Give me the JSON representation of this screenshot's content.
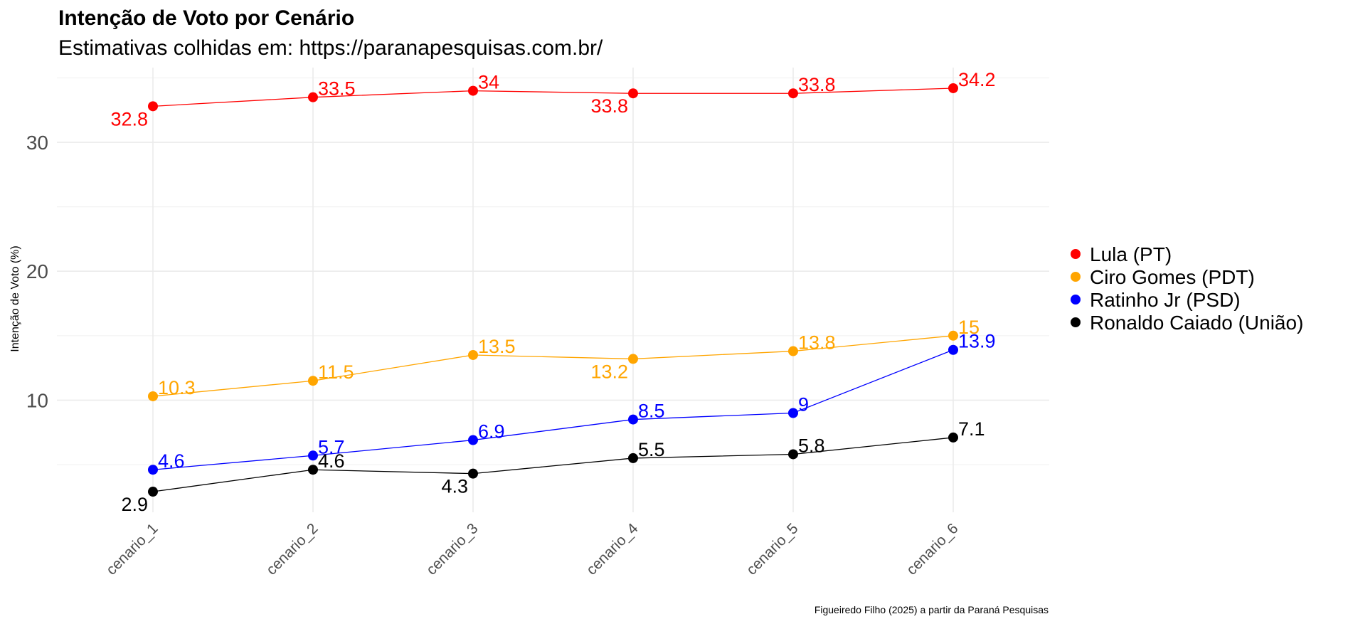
{
  "chart_data": {
    "type": "line",
    "title": "Intenção de Voto por Cenário",
    "subtitle": "Estimativas colhidas em: https://paranapesquisas.com.br/",
    "xlabel": "",
    "ylabel": "Intenção de Voto (%)",
    "caption": "Figueiredo Filho (2025) a partir da Paraná Pesquisas",
    "categories": [
      "cenario_1",
      "cenario_2",
      "cenario_3",
      "cenario_4",
      "cenario_5",
      "cenario_6"
    ],
    "ylim": [
      1.3,
      35.8
    ],
    "yticks": [
      10,
      20,
      30
    ],
    "grid": true,
    "legend_position": "right",
    "series": [
      {
        "name": "Lula (PT)",
        "color": "#ff0000",
        "values": [
          32.8,
          33.5,
          34,
          33.8,
          33.8,
          34.2
        ],
        "labels": [
          "32.8",
          "33.5",
          "34",
          "33.8",
          "33.8",
          "34.2"
        ]
      },
      {
        "name": "Ciro Gomes (PDT)",
        "color": "#ffa500",
        "values": [
          10.3,
          11.5,
          13.5,
          13.2,
          13.8,
          15
        ],
        "labels": [
          "10.3",
          "11.5",
          "13.5",
          "13.2",
          "13.8",
          "15"
        ]
      },
      {
        "name": "Ratinho Jr (PSD)",
        "color": "#0000ff",
        "values": [
          4.6,
          5.7,
          6.9,
          8.5,
          9,
          13.9
        ],
        "labels": [
          "4.6",
          "5.7",
          "6.9",
          "8.5",
          "9",
          "13.9"
        ]
      },
      {
        "name": "Ronaldo Caiado (União)",
        "color": "#000000",
        "values": [
          2.9,
          4.6,
          4.3,
          5.5,
          5.8,
          7.1
        ],
        "labels": [
          "2.9",
          "4.6",
          "4.3",
          "5.5",
          "5.8",
          "7.1"
        ]
      }
    ]
  }
}
